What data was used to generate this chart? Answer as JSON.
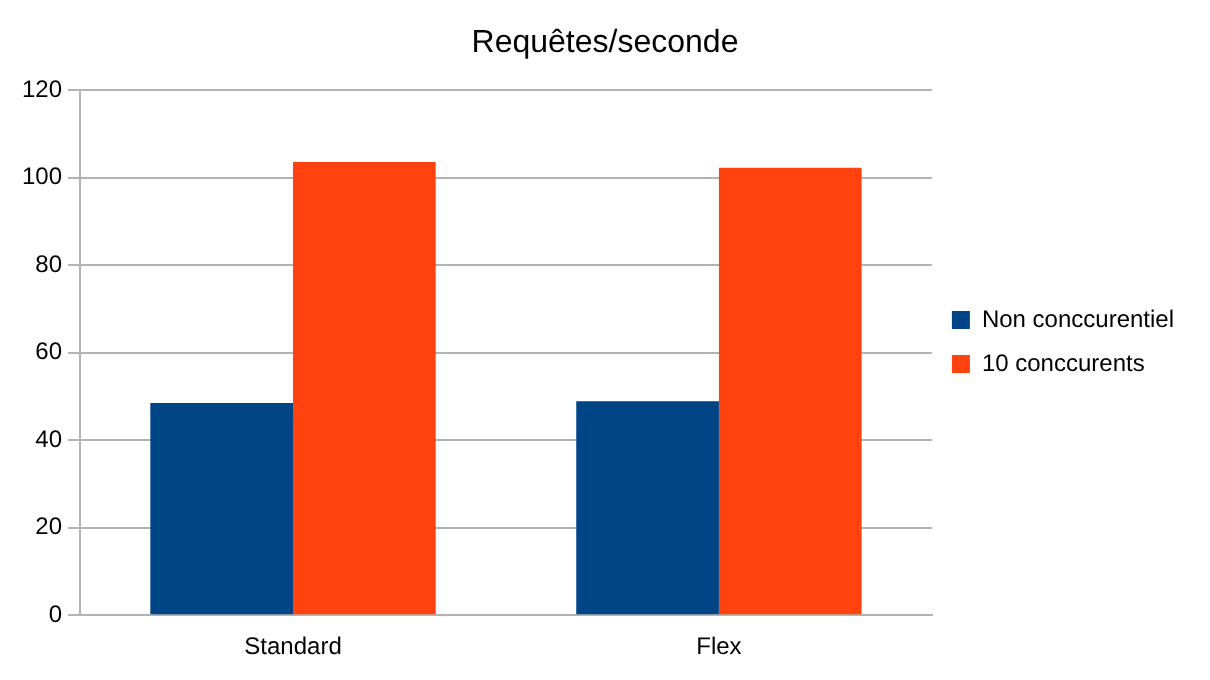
{
  "chart_data": {
    "type": "bar",
    "title": "Requêtes/seconde",
    "categories": [
      "Standard",
      "Flex"
    ],
    "series": [
      {
        "name": "Non conccurentiel",
        "color": "#004586",
        "values": [
          48.5,
          48.9
        ]
      },
      {
        "name": "10 conccurents",
        "color": "#ff420e",
        "values": [
          103.6,
          102.3
        ]
      }
    ],
    "ylim": [
      0,
      120
    ],
    "yticks": [
      0,
      20,
      40,
      60,
      80,
      100,
      120
    ],
    "grid": "y",
    "legend": "right"
  }
}
